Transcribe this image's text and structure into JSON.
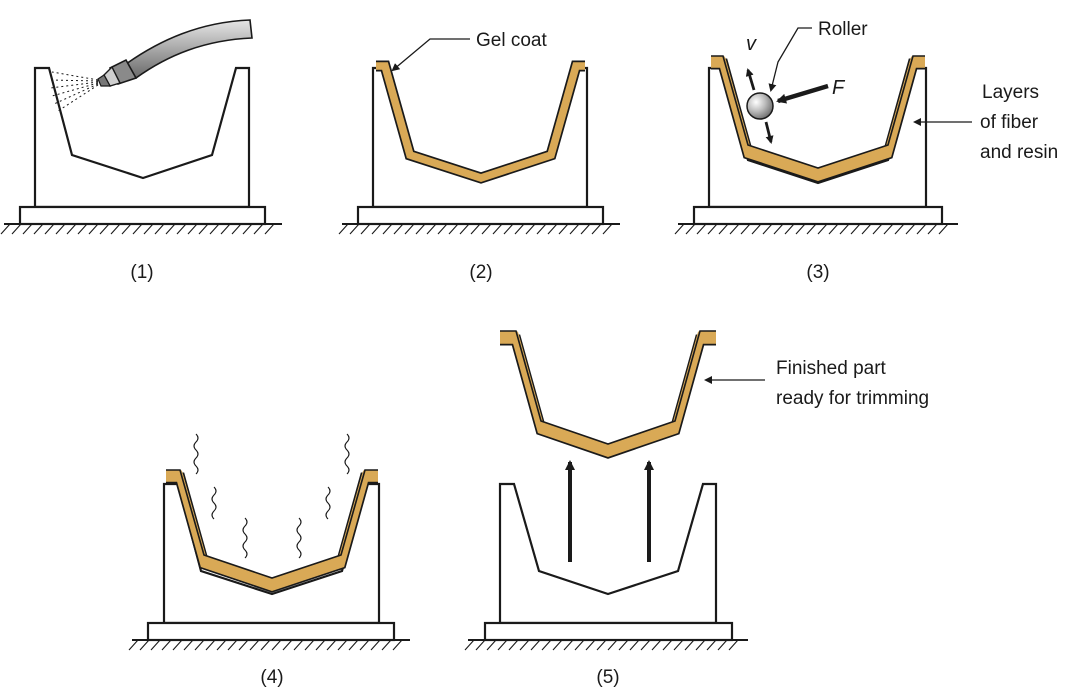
{
  "labels": {
    "gel_coat": "Gel coat",
    "roller": "Roller",
    "velocity": "v",
    "force": "F",
    "layers_line1": "Layers",
    "layers_line2": "of fiber",
    "layers_line3": "and resin",
    "finished_line1": "Finished part",
    "finished_line2": "ready for trimming"
  },
  "steps": [
    "(1)",
    "(2)",
    "(3)",
    "(4)",
    "(5)"
  ],
  "colors": {
    "layer": "#d9a956",
    "outline": "#1a1a1a",
    "background": "#ffffff"
  },
  "icons": [
    "spray-gun-icon",
    "roller-icon",
    "steam-icon",
    "lift-arrow-icon"
  ]
}
